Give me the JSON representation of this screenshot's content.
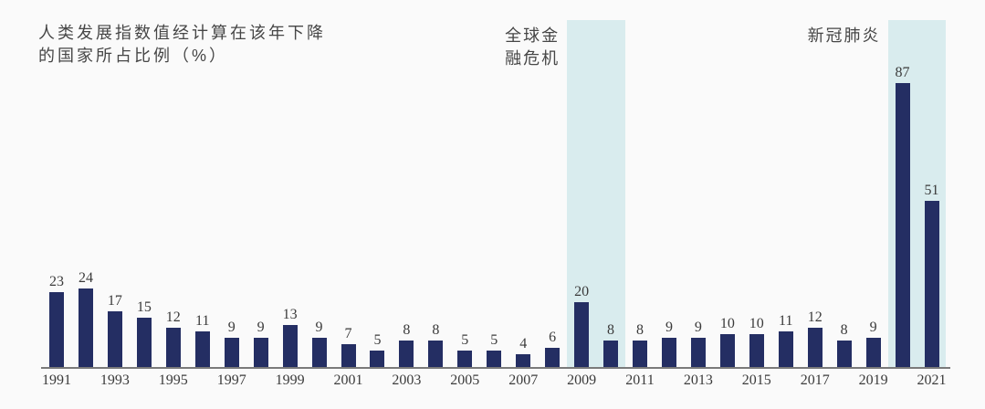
{
  "page": {
    "background": "#fafafa"
  },
  "title": {
    "lines": [
      "人类发展指数值经计算在该年下降",
      "的国家所占比例（%）"
    ],
    "full": "人类发展指数值经计算在该年下降的国家所占比例（%）"
  },
  "chart_data": {
    "type": "bar",
    "title": "人类发展指数值经计算在该年下降的国家所占比例（%）",
    "xlabel": "",
    "ylabel": "",
    "ylim": [
      0,
      90
    ],
    "grid": false,
    "legend_position": "none",
    "x": [
      1991,
      1992,
      1993,
      1994,
      1995,
      1996,
      1997,
      1998,
      1999,
      2000,
      2001,
      2002,
      2003,
      2004,
      2005,
      2006,
      2007,
      2008,
      2009,
      2010,
      2011,
      2012,
      2013,
      2014,
      2015,
      2016,
      2017,
      2018,
      2019,
      2020,
      2021
    ],
    "values": [
      23,
      24,
      17,
      15,
      12,
      11,
      9,
      9,
      13,
      9,
      7,
      5,
      8,
      8,
      5,
      5,
      4,
      6,
      20,
      8,
      8,
      9,
      9,
      10,
      10,
      11,
      12,
      8,
      9,
      87,
      51
    ],
    "x_tick_labels": [
      "1991",
      "1993",
      "1995",
      "1997",
      "1999",
      "2001",
      "2003",
      "2005",
      "2007",
      "2009",
      "2011",
      "2013",
      "2015",
      "2017",
      "2019",
      "2021"
    ],
    "value_labels_shown": true,
    "bar_color": "#242e63",
    "highlight_color": "#d9ecee",
    "axis_color": "#7a7a7a",
    "text_color": "#3b3b3b",
    "annotations": [
      {
        "label": "全球金融危机",
        "lines": [
          "全球金",
          "融危机"
        ],
        "start_year": 2009,
        "end_year": 2010
      },
      {
        "label": "新冠肺炎",
        "lines": [
          "新冠肺炎"
        ],
        "start_year": 2020,
        "end_year": 2021
      }
    ]
  }
}
